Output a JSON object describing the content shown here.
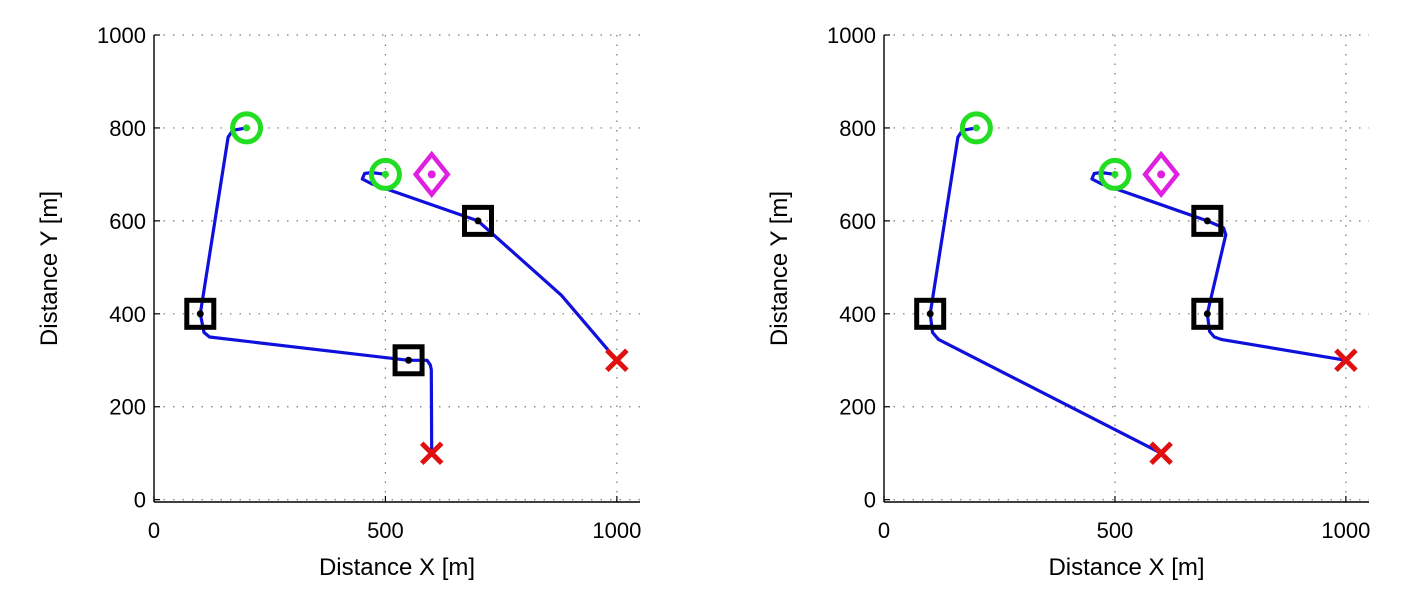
{
  "chart_data": [
    {
      "type": "scatter",
      "title": "",
      "xlabel": "Distance X [m]",
      "ylabel": "Distance Y [m]",
      "xlim": [
        0,
        1050
      ],
      "ylim": [
        -5,
        1000
      ],
      "xticks": [
        0,
        500,
        1000
      ],
      "yticks": [
        0,
        200,
        400,
        600,
        800,
        1000
      ],
      "grid": true,
      "colors": {
        "path": "#1010dd",
        "start": "#22dd22",
        "waypoint": "#000000",
        "end": "#e01010",
        "target": "#e020e0"
      },
      "series": [
        {
          "marker": "circle",
          "points": [
            [
              200,
              800
            ],
            [
              500,
              700
            ]
          ]
        },
        {
          "marker": "square",
          "points": [
            [
              100,
              400
            ],
            [
              550,
              300
            ],
            [
              700,
              600
            ]
          ]
        },
        {
          "marker": "x",
          "points": [
            [
              600,
              100
            ],
            [
              1000,
              300
            ]
          ]
        },
        {
          "marker": "diamond",
          "points": [
            [
              600,
              700
            ]
          ]
        }
      ],
      "paths": [
        [
          [
            600,
            100
          ],
          [
            599,
            280
          ],
          [
            597,
            290
          ],
          [
            590,
            300
          ],
          [
            550,
            300
          ],
          [
            120,
            350
          ],
          [
            108,
            360
          ],
          [
            100,
            400
          ],
          [
            160,
            780
          ],
          [
            170,
            795
          ],
          [
            200,
            800
          ]
        ],
        [
          [
            1000,
            300
          ],
          [
            880,
            440
          ],
          [
            700,
            600
          ],
          [
            470,
            680
          ],
          [
            450,
            690
          ],
          [
            455,
            702
          ],
          [
            470,
            704
          ],
          [
            500,
            700
          ]
        ]
      ]
    },
    {
      "type": "scatter",
      "title": "",
      "xlabel": "Distance X [m]",
      "ylabel": "Distance Y [m]",
      "xlim": [
        0,
        1050
      ],
      "ylim": [
        -5,
        1000
      ],
      "xticks": [
        0,
        500,
        1000
      ],
      "yticks": [
        0,
        200,
        400,
        600,
        800,
        1000
      ],
      "grid": true,
      "colors": {
        "path": "#1010dd",
        "start": "#22dd22",
        "waypoint": "#000000",
        "end": "#e01010",
        "target": "#e020e0"
      },
      "series": [
        {
          "marker": "circle",
          "points": [
            [
              200,
              800
            ],
            [
              500,
              700
            ]
          ]
        },
        {
          "marker": "square",
          "points": [
            [
              100,
              400
            ],
            [
              700,
              400
            ],
            [
              700,
              600
            ]
          ]
        },
        {
          "marker": "x",
          "points": [
            [
              600,
              100
            ],
            [
              1000,
              300
            ]
          ]
        },
        {
          "marker": "diamond",
          "points": [
            [
              600,
              700
            ]
          ]
        }
      ],
      "paths": [
        [
          [
            600,
            100
          ],
          [
            118,
            345
          ],
          [
            105,
            360
          ],
          [
            100,
            400
          ],
          [
            160,
            780
          ],
          [
            170,
            795
          ],
          [
            200,
            800
          ]
        ],
        [
          [
            1000,
            300
          ],
          [
            730,
            345
          ],
          [
            715,
            350
          ],
          [
            705,
            362
          ],
          [
            700,
            400
          ],
          [
            740,
            570
          ],
          [
            735,
            585
          ],
          [
            700,
            600
          ],
          [
            470,
            680
          ],
          [
            450,
            690
          ],
          [
            455,
            702
          ],
          [
            470,
            704
          ],
          [
            500,
            700
          ]
        ]
      ]
    }
  ]
}
